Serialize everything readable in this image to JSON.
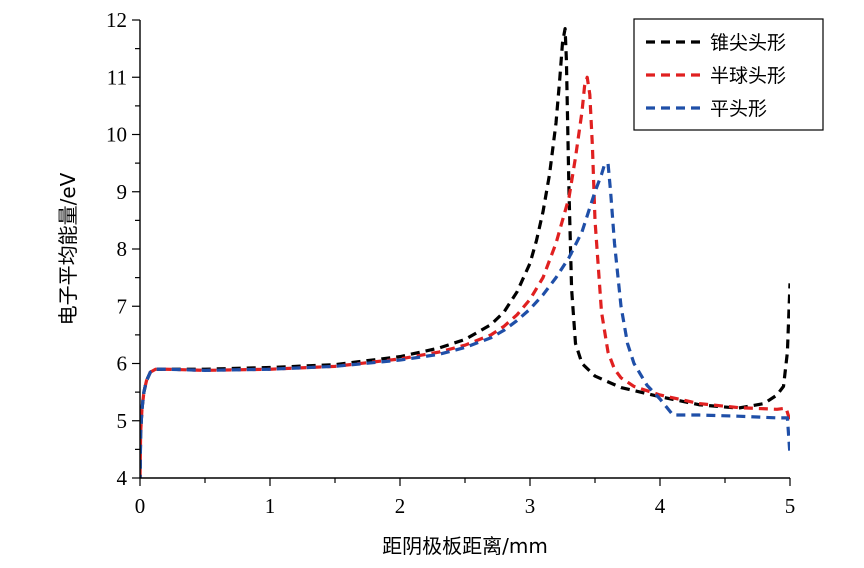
{
  "chart_data": {
    "type": "line",
    "xlabel": "距阴极板距离/mm",
    "ylabel": "电子平均能量/eV",
    "xlim": [
      0,
      5
    ],
    "ylim": [
      4,
      12
    ],
    "xticks": [
      0,
      1,
      2,
      3,
      4,
      5
    ],
    "yticks": [
      4,
      5,
      6,
      7,
      8,
      9,
      10,
      11,
      12
    ],
    "grid": false,
    "legend_position": "top-right",
    "series": [
      {
        "name": "锥尖头形",
        "color": "#000000",
        "x": [
          0,
          0.005,
          0.015,
          0.03,
          0.05,
          0.08,
          0.12,
          0.2,
          0.5,
          1.0,
          1.5,
          2.0,
          2.3,
          2.5,
          2.7,
          2.8,
          2.9,
          3.0,
          3.05,
          3.1,
          3.15,
          3.2,
          3.23,
          3.25,
          3.27,
          3.28,
          3.3,
          3.32,
          3.35,
          3.4,
          3.5,
          3.7,
          4.0,
          4.3,
          4.6,
          4.8,
          4.9,
          4.95,
          4.98,
          5.0
        ],
        "y": [
          3.9,
          4.8,
          5.2,
          5.5,
          5.7,
          5.85,
          5.9,
          5.9,
          5.9,
          5.93,
          5.98,
          6.12,
          6.27,
          6.42,
          6.68,
          6.9,
          7.25,
          7.75,
          8.15,
          8.65,
          9.3,
          10.2,
          11.0,
          11.6,
          11.85,
          11.3,
          9.0,
          7.3,
          6.35,
          6.0,
          5.78,
          5.58,
          5.42,
          5.28,
          5.22,
          5.3,
          5.45,
          5.6,
          6.2,
          7.4
        ]
      },
      {
        "name": "半球头形",
        "color": "#e02020",
        "x": [
          0,
          0.005,
          0.015,
          0.03,
          0.05,
          0.08,
          0.12,
          0.2,
          0.5,
          1.0,
          1.5,
          2.0,
          2.3,
          2.5,
          2.7,
          2.8,
          2.9,
          3.0,
          3.1,
          3.2,
          3.3,
          3.35,
          3.4,
          3.42,
          3.44,
          3.46,
          3.48,
          3.5,
          3.55,
          3.6,
          3.65,
          3.7,
          3.8,
          4.0,
          4.3,
          4.6,
          4.9,
          4.97,
          5.0
        ],
        "y": [
          4.0,
          4.8,
          5.2,
          5.5,
          5.7,
          5.85,
          5.9,
          5.9,
          5.88,
          5.9,
          5.95,
          6.08,
          6.2,
          6.32,
          6.5,
          6.65,
          6.85,
          7.12,
          7.5,
          8.1,
          8.9,
          9.6,
          10.4,
          10.85,
          11.0,
          10.7,
          9.8,
          8.5,
          6.9,
          6.2,
          5.9,
          5.75,
          5.6,
          5.45,
          5.3,
          5.23,
          5.2,
          5.22,
          5.0
        ]
      },
      {
        "name": "平头形",
        "color": "#1f4fa8",
        "x": [
          0,
          0.005,
          0.015,
          0.03,
          0.05,
          0.08,
          0.12,
          0.2,
          0.5,
          1.0,
          1.5,
          2.0,
          2.3,
          2.5,
          2.7,
          2.8,
          2.9,
          3.0,
          3.1,
          3.2,
          3.3,
          3.4,
          3.45,
          3.5,
          3.55,
          3.57,
          3.6,
          3.62,
          3.65,
          3.7,
          3.75,
          3.8,
          3.9,
          4.0,
          4.1,
          4.15,
          4.3,
          4.6,
          4.9,
          4.98,
          5.0
        ],
        "y": [
          3.9,
          4.8,
          5.2,
          5.5,
          5.7,
          5.85,
          5.9,
          5.9,
          5.88,
          5.9,
          5.95,
          6.06,
          6.16,
          6.28,
          6.45,
          6.58,
          6.75,
          6.95,
          7.2,
          7.5,
          7.85,
          8.3,
          8.65,
          9.0,
          9.3,
          9.45,
          9.5,
          9.0,
          8.1,
          7.0,
          6.35,
          6.0,
          5.62,
          5.38,
          5.1,
          5.1,
          5.1,
          5.08,
          5.05,
          5.05,
          4.4
        ]
      }
    ]
  }
}
